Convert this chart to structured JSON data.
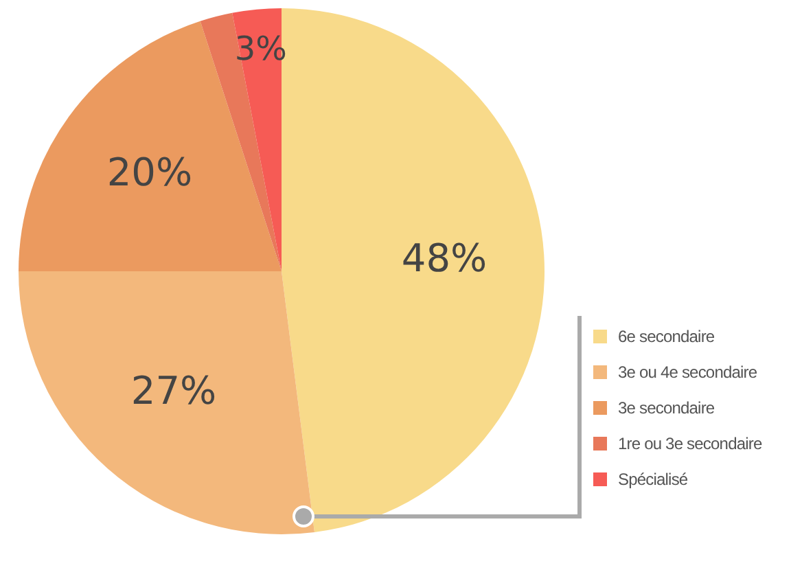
{
  "chart_data": {
    "type": "pie",
    "categories": [
      "6e secondaire",
      "3e ou 4e secondaire",
      "3e secondaire",
      "1re ou 3e secondaire",
      "Spécialisé"
    ],
    "values": [
      48,
      27,
      20,
      2,
      3
    ],
    "colors": [
      "#f8da8a",
      "#f3b87c",
      "#eb9a5f",
      "#e8785a",
      "#f65b55"
    ],
    "value_labels": [
      "48%",
      "27%",
      "20%",
      null,
      "3%"
    ],
    "legend": "bottom right"
  }
}
